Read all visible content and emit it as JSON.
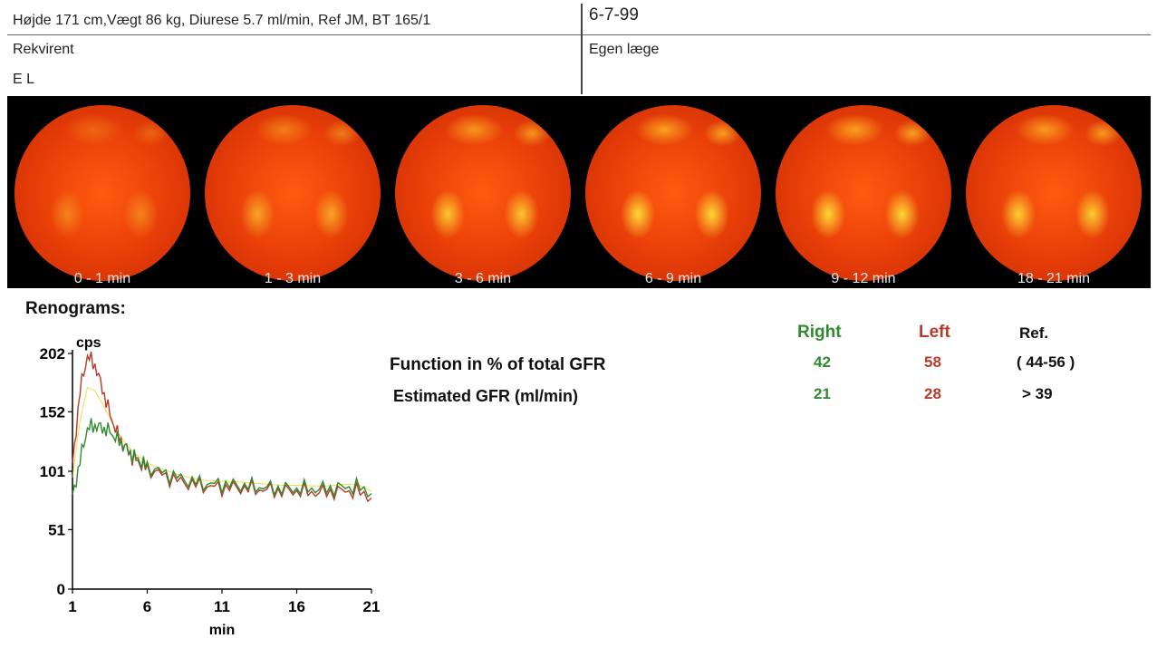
{
  "header": {
    "patient_info": "Højde 171 cm,Vægt  86 kg, Diurese 5.7 ml/min, Ref JM, BT 165/1",
    "date": "6-7-99",
    "rekvirent_label": "Rekvirent",
    "rekvirent_value": "E L",
    "egen_laege_label": "Egen læge"
  },
  "frames": [
    {
      "label": "0 - 1 min",
      "level": 0.35
    },
    {
      "label": "1 - 3 min",
      "level": 0.55
    },
    {
      "label": "3 - 6 min",
      "level": 0.75
    },
    {
      "label": "6 - 9 min",
      "level": 0.85
    },
    {
      "label": "9 - 12 min",
      "level": 0.85
    },
    {
      "label": "18 - 21 min",
      "level": 0.8
    }
  ],
  "renogram": {
    "title": "Renograms:",
    "ylabel": "cps",
    "xlabel": "min"
  },
  "results": {
    "function_label": "Function in % of total GFR",
    "gfr_label": "Estimated GFR (ml/min)",
    "headers": {
      "right": "Right",
      "left": "Left",
      "ref": "Ref."
    },
    "function": {
      "right": "42",
      "left": "58",
      "ref": "( 44-56 )"
    },
    "gfr": {
      "right": "21",
      "left": "28",
      "ref": "> 39"
    }
  },
  "colors": {
    "right": "#2e8b2e",
    "left": "#b83a2a",
    "ref": "#111111",
    "yellow_trace": "#e8d000"
  },
  "chart_data": {
    "type": "line",
    "ylabel": "cps",
    "xlabel": "min",
    "x_ticks": [
      1,
      6,
      11,
      16,
      21
    ],
    "y_ticks": [
      0,
      51,
      101,
      152,
      202
    ],
    "xlim": [
      1,
      21
    ],
    "ylim": [
      0,
      202
    ],
    "x": [
      1,
      1.5,
      2,
      2.5,
      3,
      3.5,
      4,
      4.5,
      5,
      5.5,
      6,
      7,
      8,
      9,
      10,
      11,
      12,
      13,
      14,
      15,
      16,
      17,
      18,
      19,
      20,
      21
    ],
    "series": [
      {
        "name": "Right",
        "color": "#2e8b2e",
        "values": [
          78,
          110,
          138,
          140,
          138,
          135,
          128,
          122,
          115,
          110,
          105,
          100,
          96,
          92,
          90,
          90,
          89,
          88,
          87,
          86,
          86,
          86,
          86,
          87,
          88,
          82
        ]
      },
      {
        "name": "Left",
        "color": "#b83a2a",
        "values": [
          105,
          170,
          200,
          192,
          172,
          150,
          133,
          122,
          113,
          108,
          103,
          98,
          93,
          90,
          88,
          87,
          87,
          86,
          85,
          84,
          84,
          83,
          83,
          84,
          84,
          78
        ]
      }
    ]
  }
}
